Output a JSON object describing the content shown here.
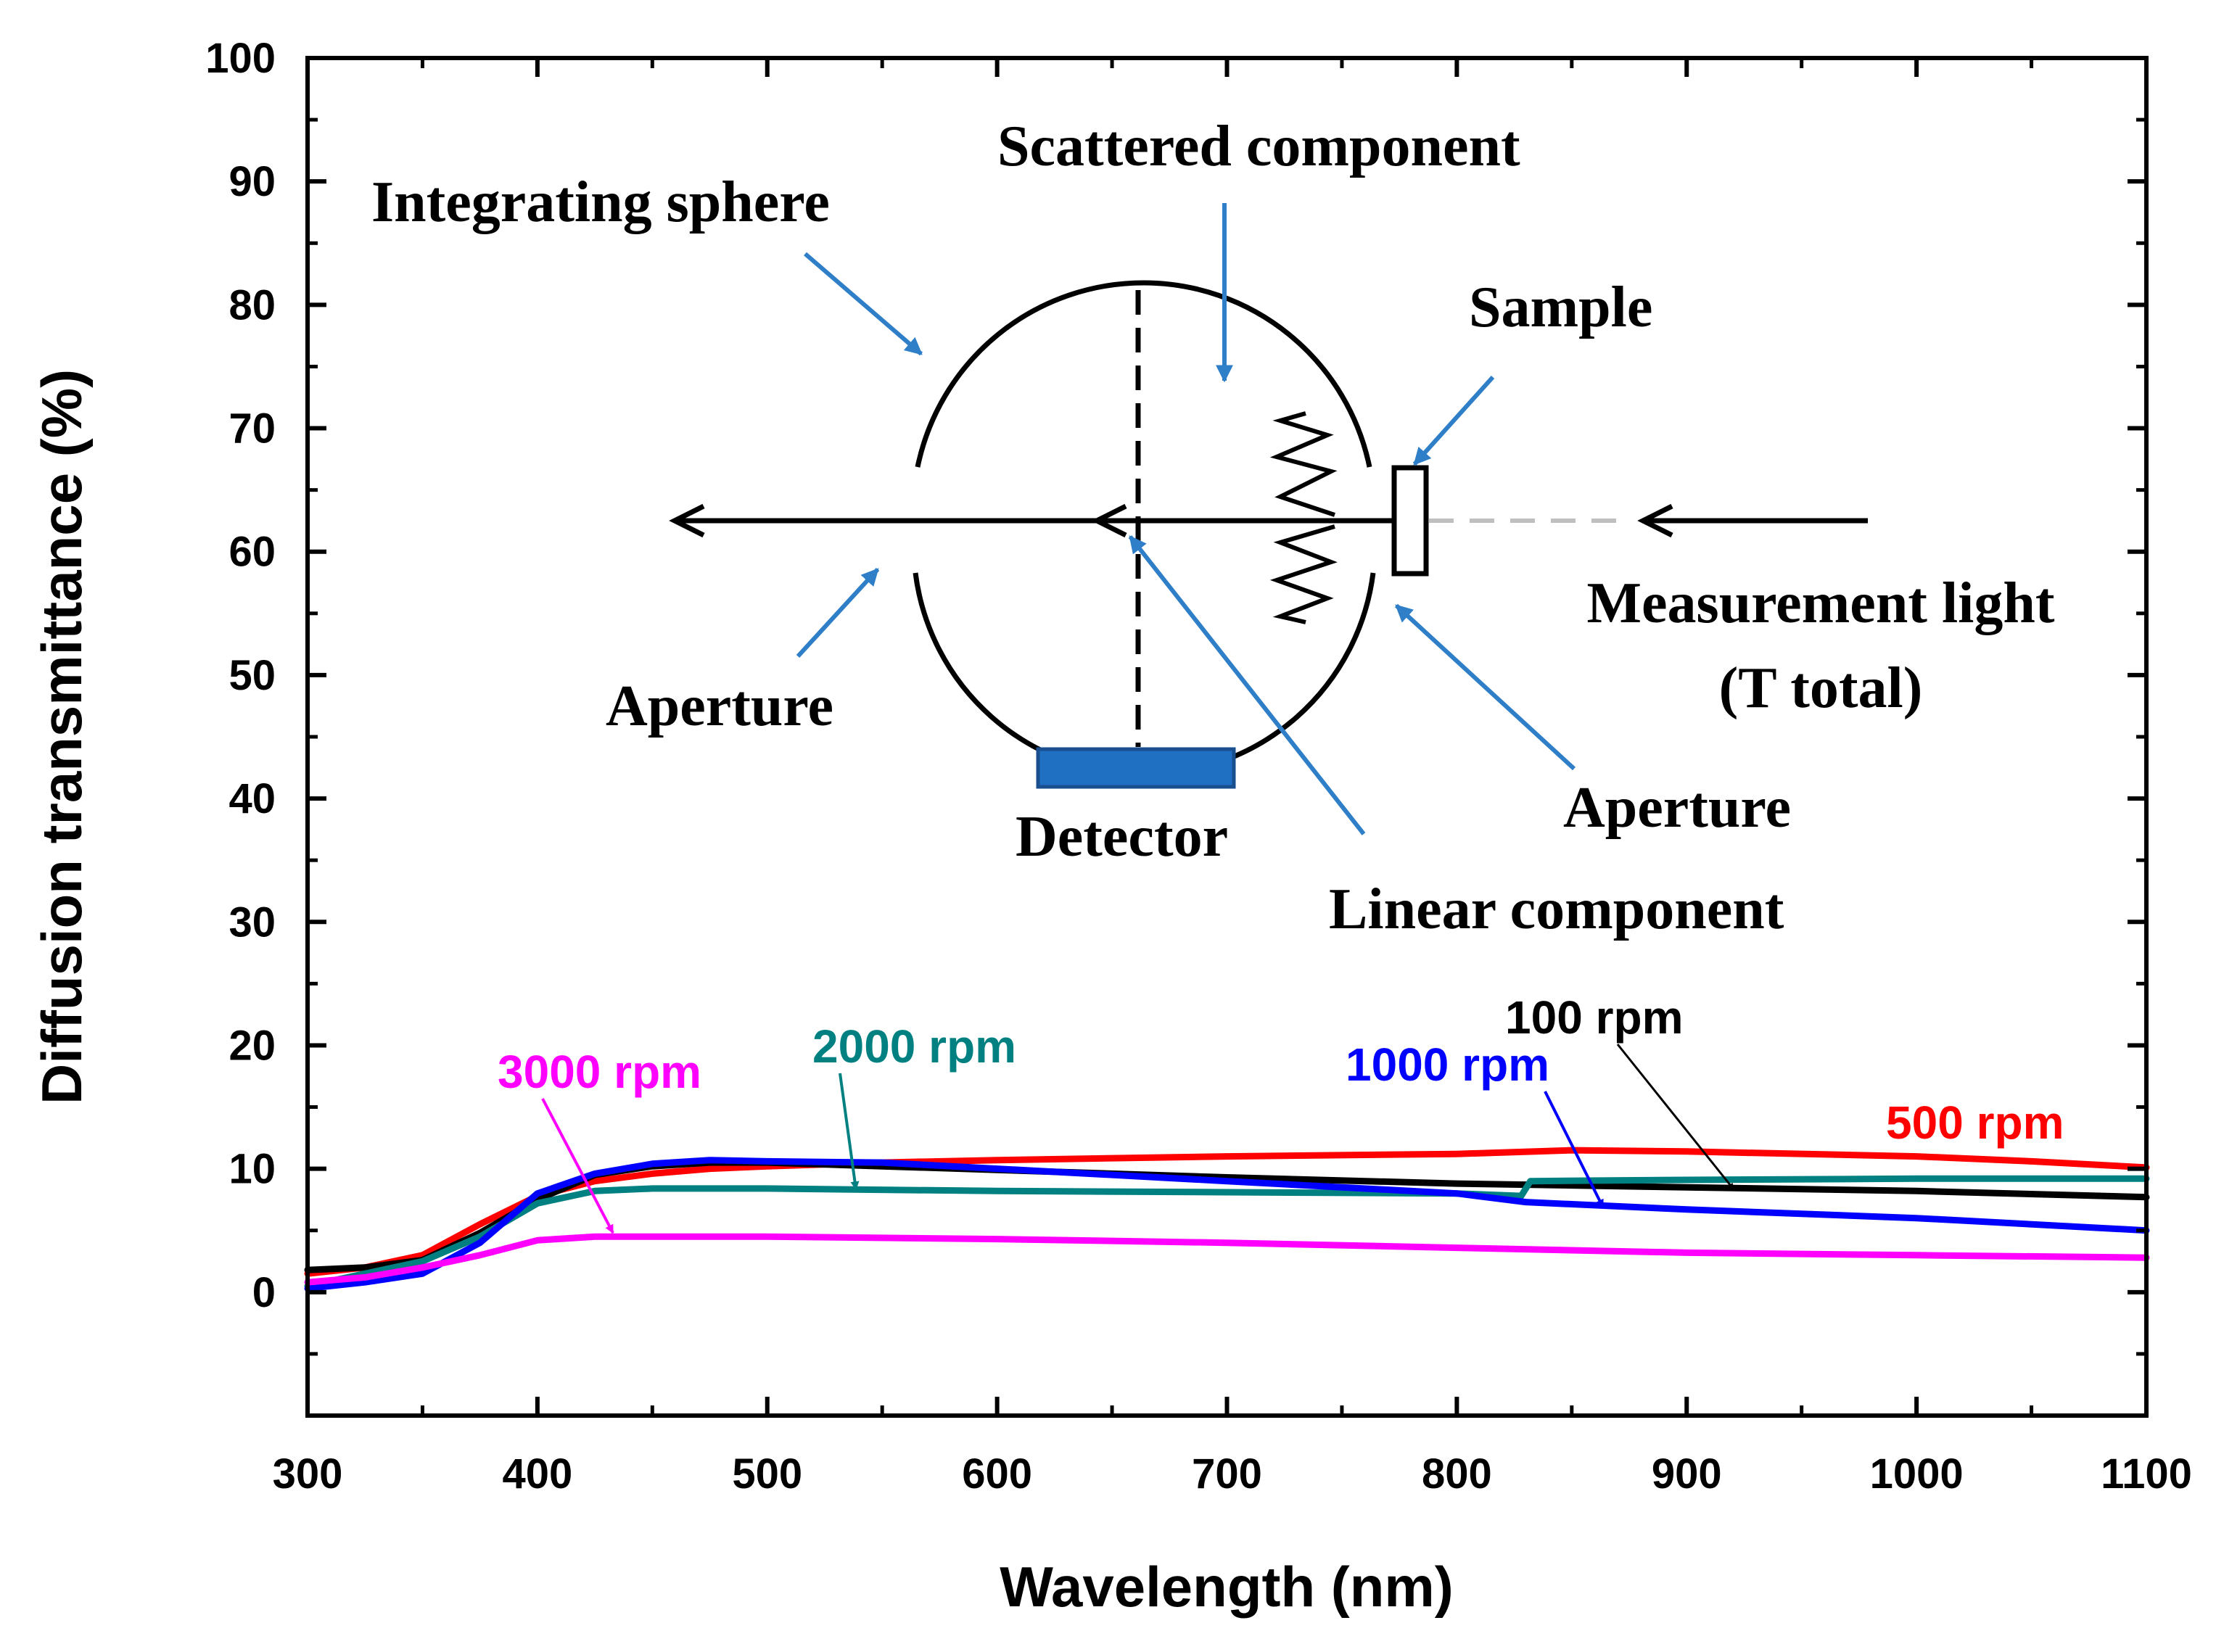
{
  "chart_data": {
    "type": "line",
    "xlabel": "Wavelength (nm)",
    "ylabel": "Diffusion transmittance (%)",
    "xlim": [
      300,
      1100
    ],
    "ylim": [
      -10,
      100
    ],
    "x_ticks": [
      300,
      400,
      500,
      600,
      700,
      800,
      900,
      1000,
      1100
    ],
    "y_ticks": [
      0,
      10,
      20,
      30,
      40,
      50,
      60,
      70,
      80,
      90,
      100
    ],
    "x_minor_step": 50,
    "y_minor_step": 5,
    "series": [
      {
        "name": "500 rpm",
        "color": "#ff0000",
        "points": [
          [
            300,
            1.5
          ],
          [
            325,
            2.0
          ],
          [
            350,
            3.0
          ],
          [
            375,
            5.5
          ],
          [
            400,
            7.8
          ],
          [
            425,
            9.0
          ],
          [
            450,
            9.6
          ],
          [
            475,
            10.0
          ],
          [
            500,
            10.2
          ],
          [
            550,
            10.5
          ],
          [
            600,
            10.7
          ],
          [
            700,
            11.0
          ],
          [
            800,
            11.2
          ],
          [
            850,
            11.5
          ],
          [
            900,
            11.4
          ],
          [
            1000,
            11.0
          ],
          [
            1050,
            10.6
          ],
          [
            1100,
            10.1
          ]
        ]
      },
      {
        "name": "100 rpm",
        "color": "#000000",
        "points": [
          [
            300,
            1.8
          ],
          [
            325,
            2.0
          ],
          [
            350,
            2.6
          ],
          [
            375,
            4.8
          ],
          [
            400,
            7.5
          ],
          [
            425,
            9.5
          ],
          [
            450,
            10.2
          ],
          [
            475,
            10.5
          ],
          [
            500,
            10.5
          ],
          [
            550,
            10.2
          ],
          [
            600,
            9.9
          ],
          [
            700,
            9.3
          ],
          [
            800,
            8.8
          ],
          [
            900,
            8.5
          ],
          [
            1000,
            8.2
          ],
          [
            1100,
            7.7
          ]
        ]
      },
      {
        "name": "2000 rpm",
        "color": "#008080",
        "points": [
          [
            300,
            0.5
          ],
          [
            325,
            1.5
          ],
          [
            350,
            2.5
          ],
          [
            375,
            4.5
          ],
          [
            400,
            7.2
          ],
          [
            425,
            8.2
          ],
          [
            450,
            8.4
          ],
          [
            500,
            8.4
          ],
          [
            600,
            8.2
          ],
          [
            700,
            8.1
          ],
          [
            800,
            8.0
          ],
          [
            828,
            7.8
          ],
          [
            832,
            9.0
          ],
          [
            900,
            9.1
          ],
          [
            1000,
            9.2
          ],
          [
            1100,
            9.2
          ]
        ]
      },
      {
        "name": "1000 rpm",
        "color": "#0000ff",
        "points": [
          [
            300,
            0.3
          ],
          [
            325,
            0.8
          ],
          [
            350,
            1.5
          ],
          [
            375,
            4.0
          ],
          [
            400,
            8.0
          ],
          [
            425,
            9.6
          ],
          [
            450,
            10.4
          ],
          [
            475,
            10.7
          ],
          [
            500,
            10.6
          ],
          [
            550,
            10.5
          ],
          [
            600,
            10.0
          ],
          [
            700,
            9.0
          ],
          [
            800,
            8.0
          ],
          [
            830,
            7.3
          ],
          [
            900,
            6.7
          ],
          [
            1000,
            6.0
          ],
          [
            1100,
            5.0
          ]
        ]
      },
      {
        "name": "3000 rpm",
        "color": "#ff00ff",
        "points": [
          [
            300,
            0.8
          ],
          [
            325,
            1.2
          ],
          [
            350,
            2.0
          ],
          [
            375,
            3.0
          ],
          [
            400,
            4.2
          ],
          [
            425,
            4.5
          ],
          [
            450,
            4.5
          ],
          [
            500,
            4.5
          ],
          [
            600,
            4.3
          ],
          [
            700,
            4.0
          ],
          [
            800,
            3.6
          ],
          [
            900,
            3.2
          ],
          [
            1000,
            3.0
          ],
          [
            1100,
            2.8
          ]
        ]
      }
    ],
    "annotations": {
      "series_labels": [
        "3000 rpm",
        "2000 rpm",
        "100 rpm",
        "1000 rpm",
        "500 rpm"
      ],
      "inset_diagram_labels": {
        "integrating_sphere": "Integrating sphere",
        "scattered_component": "Scattered component",
        "sample": "Sample",
        "measurement_light_line1": "Measurement light",
        "measurement_light_line2": "(T total)",
        "aperture_left": "Aperture",
        "aperture_right": "Aperture",
        "detector": "Detector",
        "linear_component": "Linear component"
      }
    }
  },
  "colors": {
    "arrow_blue": "#2e7ec8",
    "detector_fill": "#1f6fc2",
    "detector_stroke": "#1a4f8f",
    "dashed_light": "#bfbfbf"
  }
}
